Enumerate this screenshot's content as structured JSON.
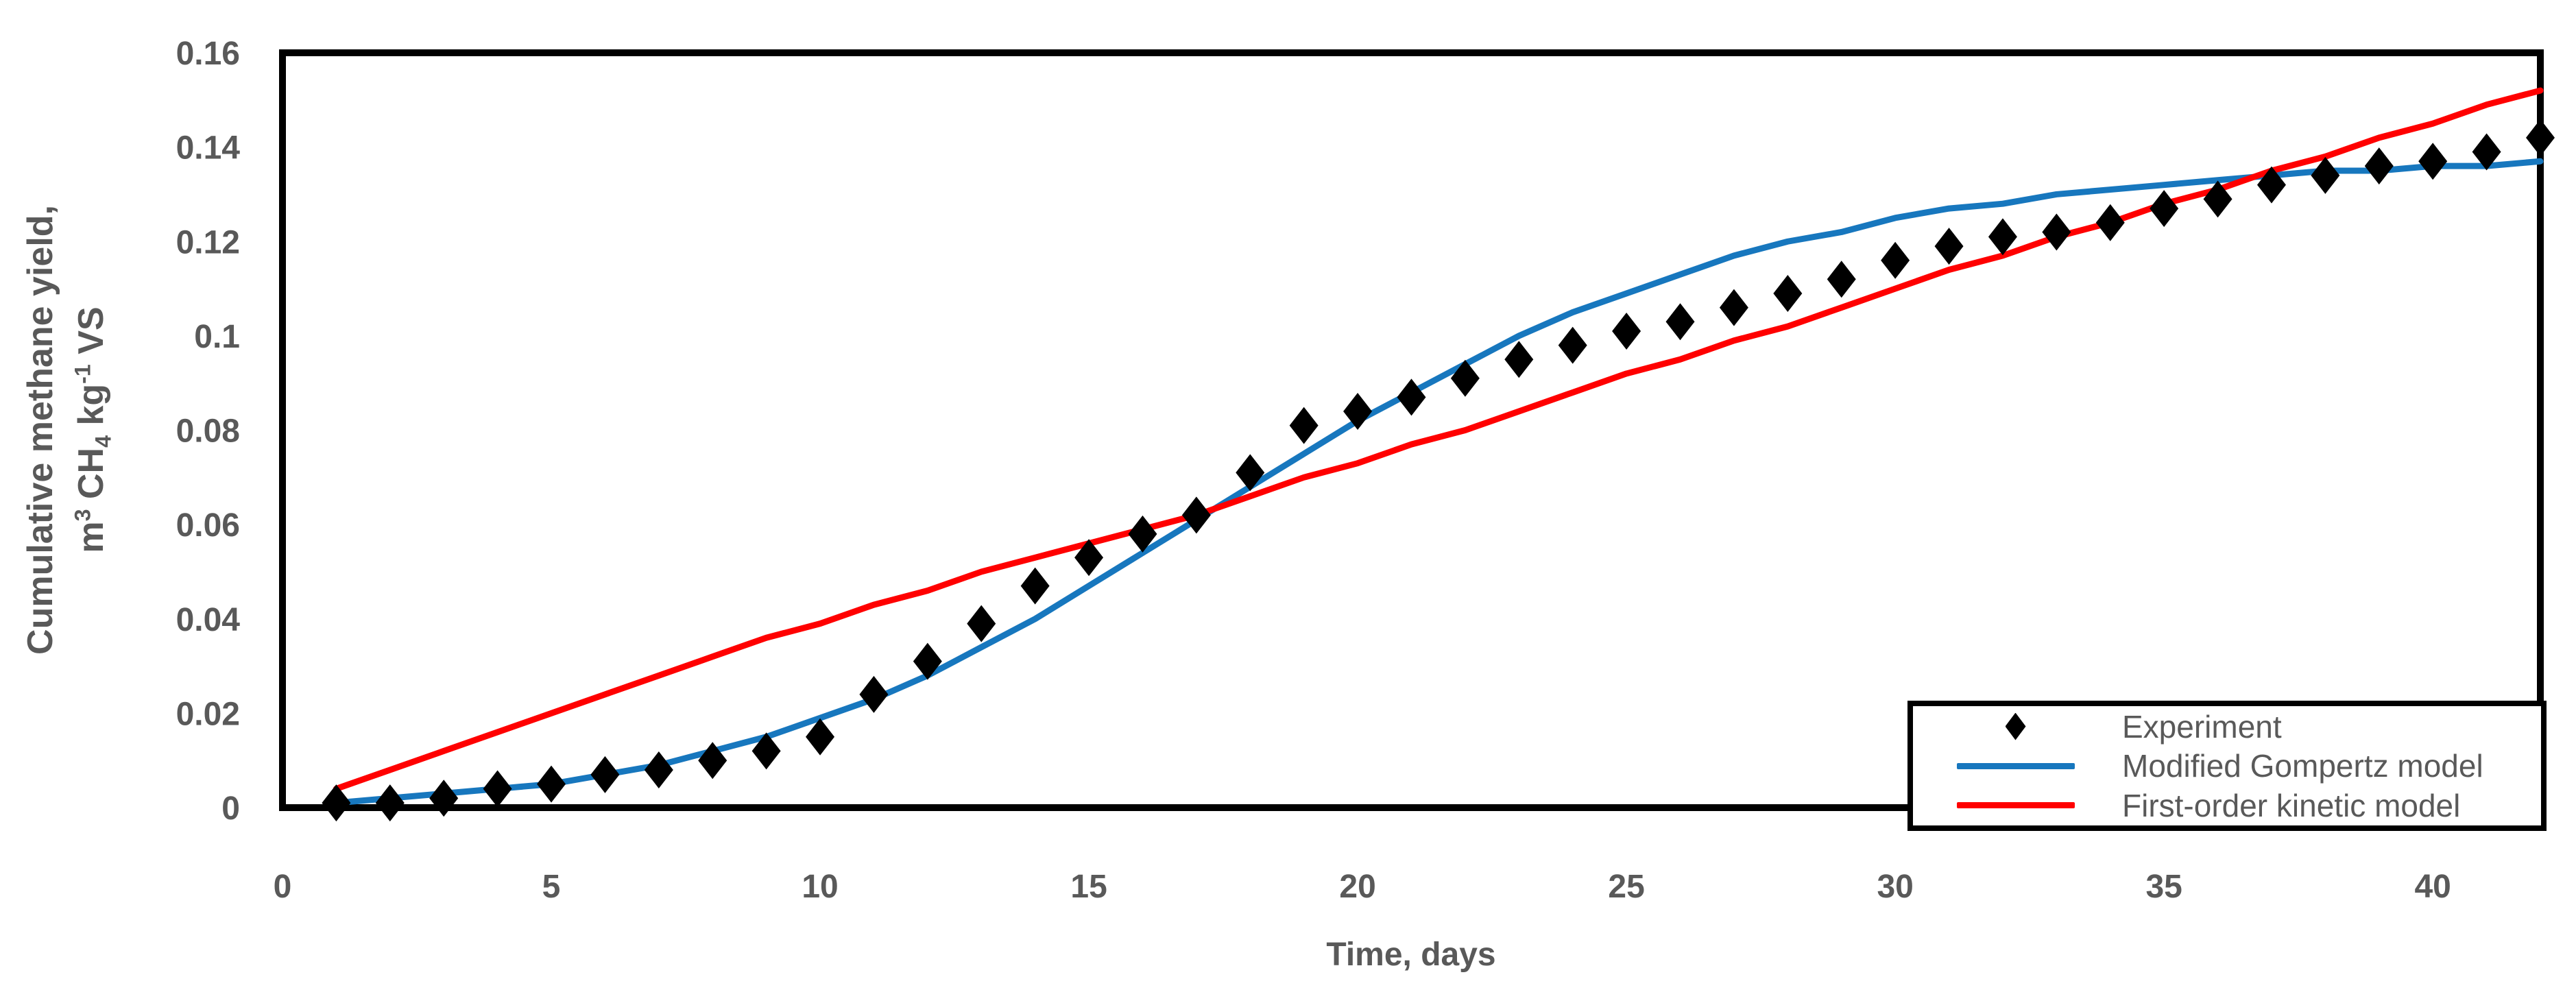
{
  "colors": {
    "axis_text": "#595959",
    "frame": "#000000",
    "experiment": "#000000",
    "gompertz": "#1777BE",
    "first_order": "#FF0000",
    "background": "#FFFFFF"
  },
  "x_axis": {
    "title": "Time, days",
    "tick_labels": [
      "0",
      "5",
      "10",
      "15",
      "20",
      "25",
      "30",
      "35",
      "40"
    ]
  },
  "y_axis": {
    "title_line1": "Cumulative methane yield,",
    "title_line2_parts": [
      {
        "t": "m",
        "style": "normal"
      },
      {
        "t": "3",
        "style": "sup"
      },
      {
        "t": " CH",
        "style": "normal"
      },
      {
        "t": "4",
        "style": "sub"
      },
      {
        "t": " kg",
        "style": "normal"
      },
      {
        "t": "-1",
        "style": "sup"
      },
      {
        "t": " VS",
        "style": "normal"
      }
    ],
    "tick_labels": [
      "0",
      "0.02",
      "0.04",
      "0.06",
      "0.08",
      "0.1",
      "0.12",
      "0.14",
      "0.16"
    ]
  },
  "chart_data": {
    "type": "line",
    "title": "",
    "xlabel": "Time, days",
    "ylabel": "Cumulative methane yield, m3 CH4 kg-1 VS",
    "xlim": [
      0,
      42
    ],
    "ylim": [
      0,
      0.16
    ],
    "x_ticks": [
      0,
      5,
      10,
      15,
      20,
      25,
      30,
      35,
      40
    ],
    "y_ticks": [
      0,
      0.02,
      0.04,
      0.06,
      0.08,
      0.1,
      0.12,
      0.14,
      0.16
    ],
    "grid": false,
    "legend_position": "bottom-right",
    "x": [
      1,
      2,
      3,
      4,
      5,
      6,
      7,
      8,
      9,
      10,
      11,
      12,
      13,
      14,
      15,
      16,
      17,
      18,
      19,
      20,
      21,
      22,
      23,
      24,
      25,
      26,
      27,
      28,
      29,
      30,
      31,
      32,
      33,
      34,
      35,
      36,
      37,
      38,
      39,
      40,
      41,
      42
    ],
    "series": [
      {
        "name": "Experiment",
        "render": "scatter",
        "marker": "diamond",
        "color": "#000000",
        "values": [
          0.001,
          0.001,
          0.002,
          0.004,
          0.005,
          0.007,
          0.008,
          0.01,
          0.012,
          0.015,
          0.024,
          0.031,
          0.039,
          0.047,
          0.053,
          0.058,
          0.062,
          0.071,
          0.081,
          0.084,
          0.087,
          0.091,
          0.095,
          0.098,
          0.101,
          0.103,
          0.106,
          0.109,
          0.112,
          0.116,
          0.119,
          0.121,
          0.122,
          0.124,
          0.127,
          0.129,
          0.132,
          0.134,
          0.136,
          0.137,
          0.139,
          0.142
        ]
      },
      {
        "name": "Modified Gompertz model",
        "render": "line",
        "color": "#1777BE",
        "values": [
          0.001,
          0.002,
          0.003,
          0.004,
          0.005,
          0.007,
          0.009,
          0.012,
          0.015,
          0.019,
          0.023,
          0.028,
          0.034,
          0.04,
          0.047,
          0.054,
          0.061,
          0.068,
          0.075,
          0.082,
          0.088,
          0.094,
          0.1,
          0.105,
          0.109,
          0.113,
          0.117,
          0.12,
          0.122,
          0.125,
          0.127,
          0.128,
          0.13,
          0.131,
          0.132,
          0.133,
          0.134,
          0.135,
          0.135,
          0.136,
          0.136,
          0.137
        ]
      },
      {
        "name": "First-order kinetic model",
        "render": "line",
        "color": "#FF0000",
        "values": [
          0.004,
          0.008,
          0.012,
          0.016,
          0.02,
          0.024,
          0.028,
          0.032,
          0.036,
          0.039,
          0.043,
          0.046,
          0.05,
          0.053,
          0.056,
          0.059,
          0.062,
          0.066,
          0.07,
          0.073,
          0.077,
          0.08,
          0.084,
          0.088,
          0.092,
          0.095,
          0.099,
          0.102,
          0.106,
          0.11,
          0.114,
          0.117,
          0.121,
          0.124,
          0.128,
          0.131,
          0.135,
          0.138,
          0.142,
          0.145,
          0.149,
          0.152
        ]
      }
    ]
  },
  "legend": {
    "items": [
      {
        "label": "Experiment"
      },
      {
        "label": "Modified Gompertz model"
      },
      {
        "label": "First-order kinetic model"
      }
    ]
  }
}
